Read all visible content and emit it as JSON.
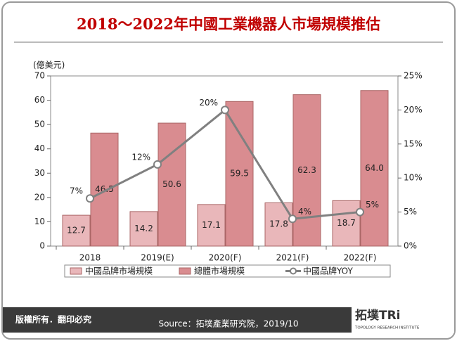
{
  "chart_data": {
    "type": "bar",
    "title": "2018～2022年中國工業機器人市場規模推估",
    "y_label": "(億美元)",
    "categories": [
      "2018",
      "2019(E)",
      "2020(F)",
      "2021(F)",
      "2022(F)"
    ],
    "series": [
      {
        "name": "中國品牌市場規模",
        "color": "#e9b7ba",
        "values": [
          12.7,
          14.2,
          17.1,
          17.8,
          18.7
        ]
      },
      {
        "name": "總體市場規模",
        "color": "#d98c90",
        "values": [
          46.5,
          50.6,
          59.5,
          62.3,
          64.0
        ],
        "value_labels": [
          "46.5",
          "50.6",
          "59.5",
          "62.3",
          "64.0"
        ]
      },
      {
        "name": "中國品牌YOY",
        "type": "line",
        "axis": "y2",
        "color": "#808080",
        "values": [
          7,
          12,
          20,
          4,
          5
        ],
        "value_labels": [
          "7%",
          "12%",
          "20%",
          "4%",
          "5%"
        ]
      }
    ],
    "ylim": [
      0,
      70
    ],
    "yticks": [
      0,
      10,
      20,
      30,
      40,
      50,
      60,
      70
    ],
    "y2lim": [
      0,
      25
    ],
    "y2ticks": [
      {
        "value": 0,
        "label": "0%"
      },
      {
        "value": 5,
        "label": "5%"
      },
      {
        "value": 10,
        "label": "10%"
      },
      {
        "value": 15,
        "label": "15%"
      },
      {
        "value": 20,
        "label": "20%"
      },
      {
        "value": 25,
        "label": "25%"
      }
    ],
    "footer_left": "版權所有．翻印必究",
    "source": "Source：拓墣產業研究院，2019/10",
    "logo": "拓墣TRi",
    "logo_sub": "TOPOLOGY RESEARCH INSTITUTE"
  }
}
